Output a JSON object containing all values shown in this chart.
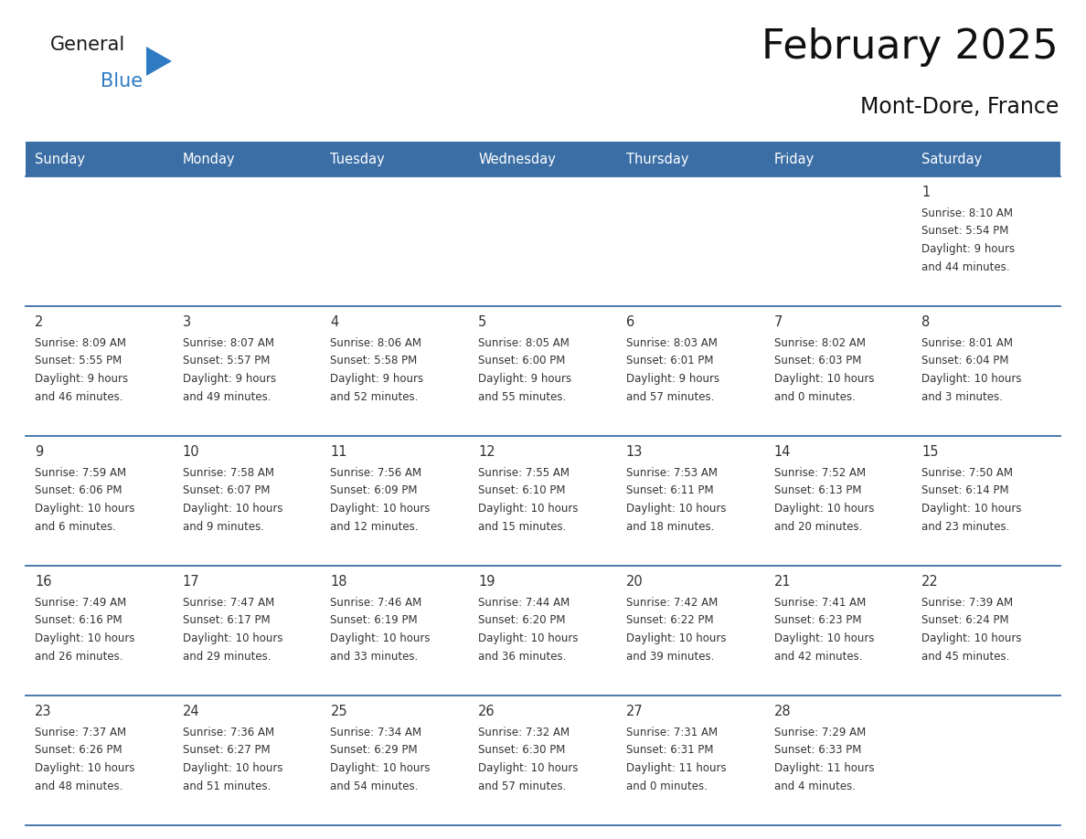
{
  "title": "February 2025",
  "subtitle": "Mont-Dore, France",
  "header_bg_color": "#3A6EA5",
  "header_text_color": "#FFFFFF",
  "cell_bg_color": "#FFFFFF",
  "border_color": "#3A6EA5",
  "text_color": "#333333",
  "days_of_week": [
    "Sunday",
    "Monday",
    "Tuesday",
    "Wednesday",
    "Thursday",
    "Friday",
    "Saturday"
  ],
  "calendar": [
    [
      {
        "day": null,
        "sunrise": null,
        "sunset": null,
        "daylight": null
      },
      {
        "day": null,
        "sunrise": null,
        "sunset": null,
        "daylight": null
      },
      {
        "day": null,
        "sunrise": null,
        "sunset": null,
        "daylight": null
      },
      {
        "day": null,
        "sunrise": null,
        "sunset": null,
        "daylight": null
      },
      {
        "day": null,
        "sunrise": null,
        "sunset": null,
        "daylight": null
      },
      {
        "day": null,
        "sunrise": null,
        "sunset": null,
        "daylight": null
      },
      {
        "day": 1,
        "sunrise": "8:10 AM",
        "sunset": "5:54 PM",
        "daylight": "9 hours\nand 44 minutes."
      }
    ],
    [
      {
        "day": 2,
        "sunrise": "8:09 AM",
        "sunset": "5:55 PM",
        "daylight": "9 hours\nand 46 minutes."
      },
      {
        "day": 3,
        "sunrise": "8:07 AM",
        "sunset": "5:57 PM",
        "daylight": "9 hours\nand 49 minutes."
      },
      {
        "day": 4,
        "sunrise": "8:06 AM",
        "sunset": "5:58 PM",
        "daylight": "9 hours\nand 52 minutes."
      },
      {
        "day": 5,
        "sunrise": "8:05 AM",
        "sunset": "6:00 PM",
        "daylight": "9 hours\nand 55 minutes."
      },
      {
        "day": 6,
        "sunrise": "8:03 AM",
        "sunset": "6:01 PM",
        "daylight": "9 hours\nand 57 minutes."
      },
      {
        "day": 7,
        "sunrise": "8:02 AM",
        "sunset": "6:03 PM",
        "daylight": "10 hours\nand 0 minutes."
      },
      {
        "day": 8,
        "sunrise": "8:01 AM",
        "sunset": "6:04 PM",
        "daylight": "10 hours\nand 3 minutes."
      }
    ],
    [
      {
        "day": 9,
        "sunrise": "7:59 AM",
        "sunset": "6:06 PM",
        "daylight": "10 hours\nand 6 minutes."
      },
      {
        "day": 10,
        "sunrise": "7:58 AM",
        "sunset": "6:07 PM",
        "daylight": "10 hours\nand 9 minutes."
      },
      {
        "day": 11,
        "sunrise": "7:56 AM",
        "sunset": "6:09 PM",
        "daylight": "10 hours\nand 12 minutes."
      },
      {
        "day": 12,
        "sunrise": "7:55 AM",
        "sunset": "6:10 PM",
        "daylight": "10 hours\nand 15 minutes."
      },
      {
        "day": 13,
        "sunrise": "7:53 AM",
        "sunset": "6:11 PM",
        "daylight": "10 hours\nand 18 minutes."
      },
      {
        "day": 14,
        "sunrise": "7:52 AM",
        "sunset": "6:13 PM",
        "daylight": "10 hours\nand 20 minutes."
      },
      {
        "day": 15,
        "sunrise": "7:50 AM",
        "sunset": "6:14 PM",
        "daylight": "10 hours\nand 23 minutes."
      }
    ],
    [
      {
        "day": 16,
        "sunrise": "7:49 AM",
        "sunset": "6:16 PM",
        "daylight": "10 hours\nand 26 minutes."
      },
      {
        "day": 17,
        "sunrise": "7:47 AM",
        "sunset": "6:17 PM",
        "daylight": "10 hours\nand 29 minutes."
      },
      {
        "day": 18,
        "sunrise": "7:46 AM",
        "sunset": "6:19 PM",
        "daylight": "10 hours\nand 33 minutes."
      },
      {
        "day": 19,
        "sunrise": "7:44 AM",
        "sunset": "6:20 PM",
        "daylight": "10 hours\nand 36 minutes."
      },
      {
        "day": 20,
        "sunrise": "7:42 AM",
        "sunset": "6:22 PM",
        "daylight": "10 hours\nand 39 minutes."
      },
      {
        "day": 21,
        "sunrise": "7:41 AM",
        "sunset": "6:23 PM",
        "daylight": "10 hours\nand 42 minutes."
      },
      {
        "day": 22,
        "sunrise": "7:39 AM",
        "sunset": "6:24 PM",
        "daylight": "10 hours\nand 45 minutes."
      }
    ],
    [
      {
        "day": 23,
        "sunrise": "7:37 AM",
        "sunset": "6:26 PM",
        "daylight": "10 hours\nand 48 minutes."
      },
      {
        "day": 24,
        "sunrise": "7:36 AM",
        "sunset": "6:27 PM",
        "daylight": "10 hours\nand 51 minutes."
      },
      {
        "day": 25,
        "sunrise": "7:34 AM",
        "sunset": "6:29 PM",
        "daylight": "10 hours\nand 54 minutes."
      },
      {
        "day": 26,
        "sunrise": "7:32 AM",
        "sunset": "6:30 PM",
        "daylight": "10 hours\nand 57 minutes."
      },
      {
        "day": 27,
        "sunrise": "7:31 AM",
        "sunset": "6:31 PM",
        "daylight": "11 hours\nand 0 minutes."
      },
      {
        "day": 28,
        "sunrise": "7:29 AM",
        "sunset": "6:33 PM",
        "daylight": "11 hours\nand 4 minutes."
      },
      {
        "day": null,
        "sunrise": null,
        "sunset": null,
        "daylight": null
      }
    ]
  ],
  "logo_general_color": "#1a1a1a",
  "logo_blue_color": "#2E7BC4",
  "logo_triangle_color": "#2E7BC4",
  "fig_width": 11.88,
  "fig_height": 9.18,
  "dpi": 100
}
